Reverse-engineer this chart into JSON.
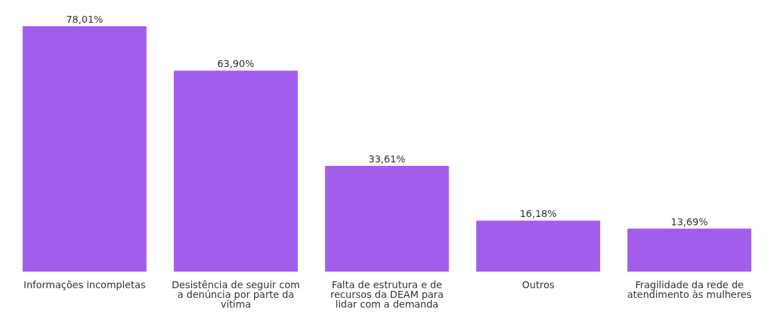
{
  "chart_data": {
    "type": "bar",
    "categories": [
      "Informações incompletas",
      "Desistência de seguir com a denúncia por parte da vítima",
      "Falta de estrutura e de recursos da DEAM para lidar com a demanda",
      "Outros",
      "Fragilidade da rede de atendimento às mulheres"
    ],
    "values": [
      78.01,
      63.9,
      33.61,
      16.18,
      13.69
    ],
    "value_labels": [
      "78,01%",
      "63,90%",
      "33,61%",
      "16,18%",
      "13,69%"
    ],
    "color": "#a35ded",
    "grid": false,
    "legend": false
  }
}
